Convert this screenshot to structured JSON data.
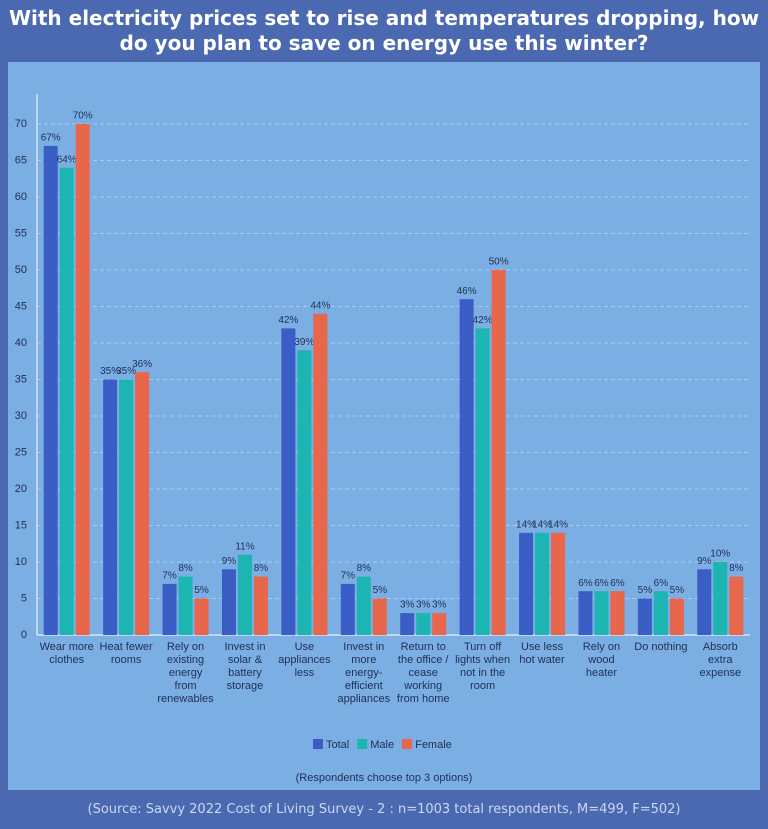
{
  "chart_data": {
    "type": "bar",
    "title": "With electricity prices set to rise and temperatures dropping, how do you plan to save on energy use this winter?",
    "note": "(Respondents choose top 3 options)",
    "source": "(Source: Savvy 2022 Cost of Living Survey - 2 : n=1003 total respondents, M=499, F=502)",
    "categories": [
      "Wear more clothes",
      "Heat fewer rooms",
      "Rely on existing energy from renewables",
      "Invest in solar & battery storage",
      "Use appliances less",
      "Invest in more energy-efficient appliances",
      "Return to the office / cease working from home",
      "Turn off lights when not in the room",
      "Use less hot water",
      "Rely on wood heater",
      "Do nothing",
      "Absorb extra expense"
    ],
    "series": [
      {
        "name": "Total",
        "color": "#3a5ec6",
        "values": [
          67,
          35,
          7,
          9,
          42,
          7,
          3,
          46,
          14,
          6,
          5,
          9
        ],
        "value_labels": [
          "67%",
          "35%",
          "7%",
          "9%",
          "42%",
          "7%",
          "3%",
          "46%",
          "14%",
          "6%",
          "5%",
          "9%"
        ]
      },
      {
        "name": "Male",
        "color": "#1db5b1",
        "values": [
          64,
          35,
          8,
          11,
          39,
          8,
          3,
          42,
          14,
          6,
          6,
          10
        ],
        "value_labels": [
          "64%",
          "35%",
          "8%",
          "11%",
          "39%",
          "8%",
          "3%",
          "42%",
          "14%",
          "6%",
          "6%",
          "10%"
        ]
      },
      {
        "name": "Female",
        "color": "#e8664b",
        "values": [
          70,
          36,
          5,
          8,
          44,
          5,
          3,
          50,
          14,
          6,
          5,
          8
        ],
        "value_labels": [
          "70%",
          "36%",
          "5%",
          "8%",
          "44%",
          "5%",
          "3%",
          "50%",
          "14%",
          "6%",
          "5%",
          "8%"
        ]
      }
    ],
    "ylim": [
      0,
      70
    ],
    "yticks": [
      0,
      5,
      10,
      15,
      20,
      25,
      30,
      35,
      40,
      45,
      50,
      55,
      60,
      65,
      70
    ],
    "grid": true,
    "legend": "bottom"
  }
}
